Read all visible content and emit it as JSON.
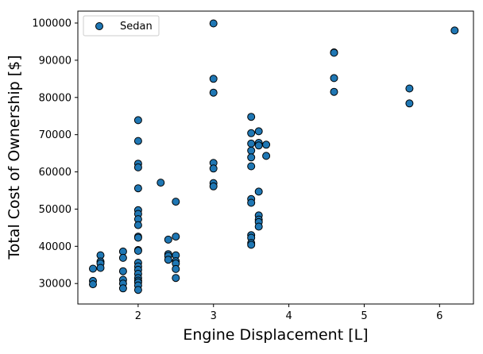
{
  "chart_data": {
    "type": "scatter",
    "title": "",
    "xlabel": "Engine Displacement [L]",
    "ylabel": "Total Cost of Ownership [$]",
    "xlim": [
      1.2,
      6.45
    ],
    "ylim": [
      24500,
      103200
    ],
    "xticks": [
      2,
      3,
      4,
      5,
      6
    ],
    "yticks": [
      30000,
      40000,
      50000,
      60000,
      70000,
      80000,
      90000,
      100000
    ],
    "grid": false,
    "legend": {
      "position": "top-left",
      "entries": [
        "Sedan"
      ]
    },
    "series": [
      {
        "name": "Sedan",
        "color": "#1f77b4",
        "edgecolor": "#000000",
        "points": [
          [
            1.4,
            34000
          ],
          [
            1.4,
            30700
          ],
          [
            1.4,
            29800
          ],
          [
            1.5,
            37600
          ],
          [
            1.5,
            35900
          ],
          [
            1.5,
            35400
          ],
          [
            1.5,
            34200
          ],
          [
            1.8,
            38600
          ],
          [
            1.8,
            36900
          ],
          [
            1.8,
            33300
          ],
          [
            1.8,
            31000
          ],
          [
            1.8,
            30000
          ],
          [
            1.8,
            28700
          ],
          [
            2.0,
            73900
          ],
          [
            2.0,
            68300
          ],
          [
            2.0,
            62200
          ],
          [
            2.0,
            61200
          ],
          [
            2.0,
            55600
          ],
          [
            2.0,
            49700
          ],
          [
            2.0,
            48700
          ],
          [
            2.0,
            47300
          ],
          [
            2.0,
            45700
          ],
          [
            2.0,
            42600
          ],
          [
            2.0,
            42300
          ],
          [
            2.0,
            39000
          ],
          [
            2.0,
            38800
          ],
          [
            2.0,
            35600
          ],
          [
            2.0,
            34600
          ],
          [
            2.0,
            33700
          ],
          [
            2.0,
            32600
          ],
          [
            2.0,
            31500
          ],
          [
            2.0,
            30800
          ],
          [
            2.0,
            30300
          ],
          [
            2.0,
            29500
          ],
          [
            2.0,
            28300
          ],
          [
            2.3,
            57100
          ],
          [
            2.4,
            41800
          ],
          [
            2.4,
            37900
          ],
          [
            2.4,
            37400
          ],
          [
            2.4,
            36400
          ],
          [
            2.5,
            52000
          ],
          [
            2.5,
            42600
          ],
          [
            2.5,
            37600
          ],
          [
            2.5,
            36000
          ],
          [
            2.5,
            35400
          ],
          [
            2.5,
            33900
          ],
          [
            2.5,
            31500
          ],
          [
            3.0,
            99900
          ],
          [
            3.0,
            85000
          ],
          [
            3.0,
            81300
          ],
          [
            3.0,
            62400
          ],
          [
            3.0,
            60900
          ],
          [
            3.0,
            57000
          ],
          [
            3.0,
            56100
          ],
          [
            3.5,
            74800
          ],
          [
            3.5,
            70400
          ],
          [
            3.5,
            67600
          ],
          [
            3.5,
            65700
          ],
          [
            3.5,
            63900
          ],
          [
            3.5,
            61500
          ],
          [
            3.5,
            52700
          ],
          [
            3.5,
            51700
          ],
          [
            3.5,
            43000
          ],
          [
            3.5,
            42300
          ],
          [
            3.5,
            40900
          ],
          [
            3.5,
            40400
          ],
          [
            3.6,
            70900
          ],
          [
            3.6,
            67800
          ],
          [
            3.6,
            67100
          ],
          [
            3.6,
            54700
          ],
          [
            3.6,
            48300
          ],
          [
            3.6,
            47200
          ],
          [
            3.6,
            46500
          ],
          [
            3.6,
            45300
          ],
          [
            3.7,
            67300
          ],
          [
            3.7,
            64300
          ],
          [
            4.6,
            92100
          ],
          [
            4.6,
            92000
          ],
          [
            4.6,
            85200
          ],
          [
            4.6,
            81500
          ],
          [
            5.6,
            82400
          ],
          [
            5.6,
            78400
          ],
          [
            6.2,
            98000
          ]
        ]
      }
    ]
  }
}
